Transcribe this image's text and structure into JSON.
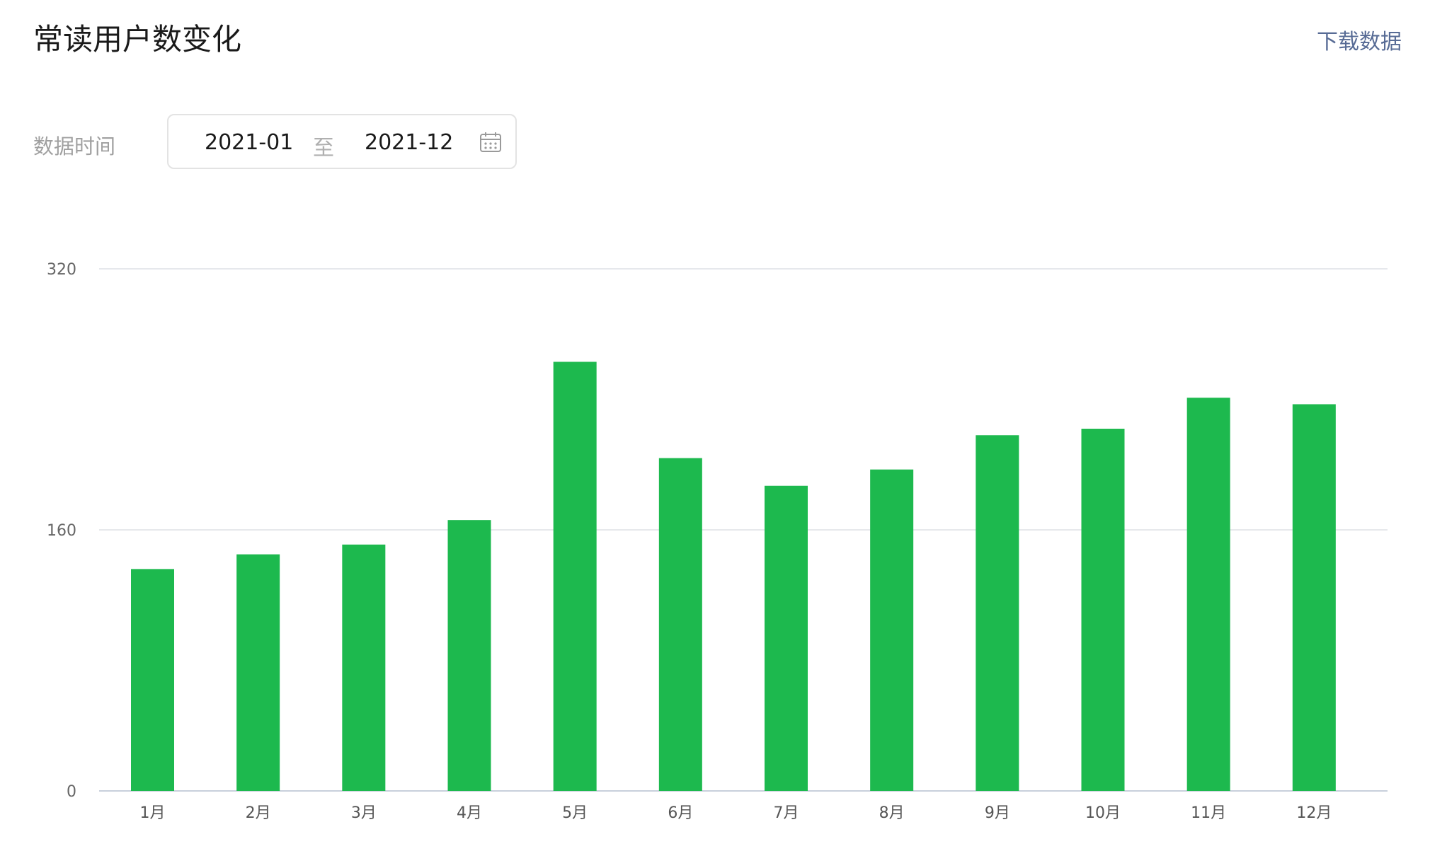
{
  "header": {
    "title": "常读用户数变化",
    "download_label": "下载数据"
  },
  "filter": {
    "label": "数据时间",
    "start": "2021-01",
    "separator": "至",
    "end": "2021-12",
    "icon": "calendar-icon"
  },
  "colors": {
    "bar": "#1db94e",
    "grid": "#dde1e6",
    "axis": "#c8d0dc",
    "link": "#576b95"
  },
  "chart_data": {
    "type": "bar",
    "categories": [
      "1月",
      "2月",
      "3月",
      "4月",
      "5月",
      "6月",
      "7月",
      "8月",
      "9月",
      "10月",
      "11月",
      "12月"
    ],
    "values": [
      136,
      145,
      151,
      166,
      263,
      204,
      187,
      197,
      218,
      222,
      241,
      237
    ],
    "yticks": [
      "0",
      "160",
      "320"
    ],
    "ylim": [
      0,
      320
    ],
    "grid": true,
    "legend": "none"
  }
}
